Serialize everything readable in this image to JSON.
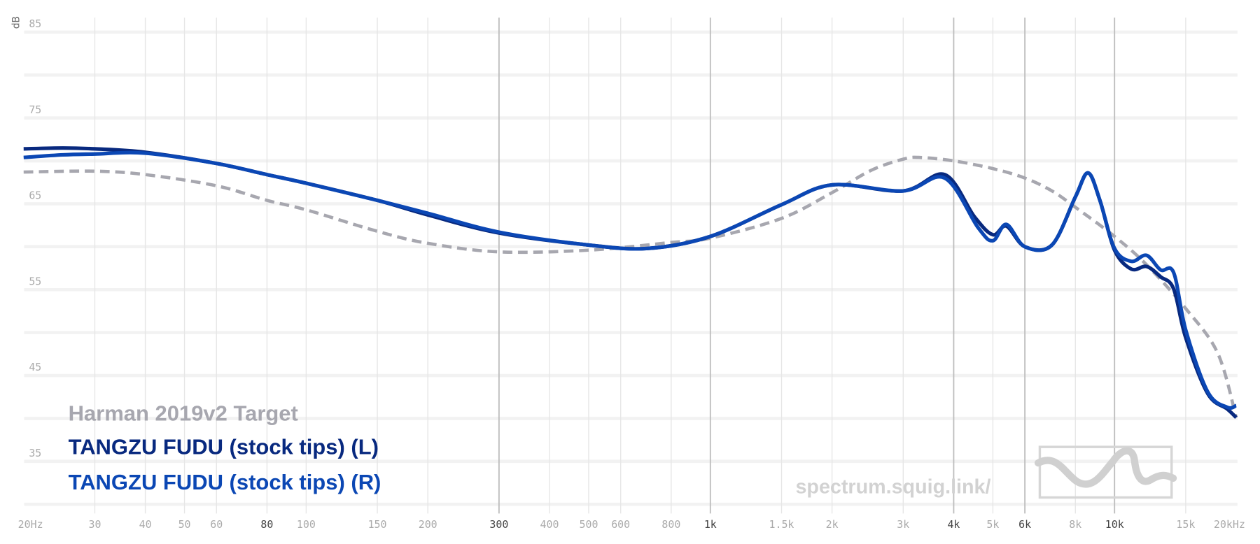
{
  "chart_data": {
    "type": "line",
    "ylabel": "dB",
    "xscale": "log",
    "xlim": [
      20,
      20000
    ],
    "ylim": [
      30,
      85
    ],
    "y_tick_labels": [
      "85",
      "75",
      "65",
      "55",
      "45",
      "35"
    ],
    "y_ticks": [
      85,
      75,
      65,
      55,
      45,
      35
    ],
    "y_grid": [
      85,
      80,
      75,
      70,
      65,
      60,
      55,
      50,
      45,
      40,
      35,
      30
    ],
    "x_ticks": [
      {
        "f": 20,
        "label": "20Hz"
      },
      {
        "f": 30,
        "label": "30"
      },
      {
        "f": 40,
        "label": "40"
      },
      {
        "f": 50,
        "label": "50"
      },
      {
        "f": 60,
        "label": "60"
      },
      {
        "f": 80,
        "label": "80",
        "major": true
      },
      {
        "f": 100,
        "label": "100"
      },
      {
        "f": 150,
        "label": "150"
      },
      {
        "f": 200,
        "label": "200"
      },
      {
        "f": 300,
        "label": "300",
        "major": true
      },
      {
        "f": 400,
        "label": "400"
      },
      {
        "f": 500,
        "label": "500"
      },
      {
        "f": 600,
        "label": "600"
      },
      {
        "f": 800,
        "label": "800"
      },
      {
        "f": 1000,
        "label": "1k",
        "major": true
      },
      {
        "f": 1500,
        "label": "1.5k"
      },
      {
        "f": 2000,
        "label": "2k"
      },
      {
        "f": 3000,
        "label": "3k"
      },
      {
        "f": 4000,
        "label": "4k",
        "major": true
      },
      {
        "f": 5000,
        "label": "5k"
      },
      {
        "f": 6000,
        "label": "6k",
        "major": true
      },
      {
        "f": 8000,
        "label": "8k"
      },
      {
        "f": 10000,
        "label": "10k",
        "major": true
      },
      {
        "f": 15000,
        "label": "15k"
      },
      {
        "f": 20000,
        "label": "20kHz"
      }
    ],
    "grid": true,
    "legend_position": "bottom-left",
    "series": [
      {
        "name": "Harman 2019v2 Target",
        "color": "#a7a7af",
        "dashed": true,
        "x": [
          20,
          30,
          40,
          60,
          80,
          100,
          150,
          200,
          300,
          500,
          800,
          1000,
          1500,
          2000,
          2500,
          3000,
          3300,
          4000,
          5000,
          6000,
          7000,
          8000,
          10000,
          12000,
          15000,
          18000,
          20000
        ],
        "y": [
          68.7,
          68.8,
          68.4,
          67.1,
          65.4,
          64.3,
          61.8,
          60.4,
          59.4,
          59.6,
          60.5,
          61.0,
          63.3,
          66.3,
          68.9,
          70.2,
          70.4,
          70.0,
          69.1,
          68.0,
          66.5,
          64.6,
          61.2,
          57.9,
          52.8,
          47.6,
          40.1
        ]
      },
      {
        "name": "TANGZU FUDU (stock tips) (L)",
        "color": "#08297f",
        "dashed": false,
        "x": [
          20,
          25,
          30,
          40,
          60,
          80,
          100,
          150,
          200,
          300,
          500,
          700,
          1000,
          1500,
          2000,
          3000,
          3800,
          4500,
          5000,
          5400,
          6000,
          7000,
          8000,
          8600,
          9200,
          10000,
          11000,
          12000,
          13000,
          14000,
          15000,
          17000,
          19000,
          20000
        ],
        "y": [
          71.4,
          71.5,
          71.4,
          71.0,
          69.7,
          68.4,
          67.4,
          65.4,
          63.7,
          61.6,
          60.2,
          59.8,
          61.2,
          64.9,
          67.2,
          66.5,
          68.4,
          63.5,
          61.4,
          62.4,
          60.0,
          60.2,
          65.8,
          68.6,
          65.4,
          59.6,
          57.4,
          57.7,
          56.5,
          55.1,
          49.4,
          42.9,
          41.1,
          40.1
        ]
      },
      {
        "name": "TANGZU FUDU (stock tips) (R)",
        "color": "#0b47b4",
        "dashed": false,
        "x": [
          20,
          25,
          30,
          40,
          60,
          80,
          100,
          150,
          200,
          300,
          500,
          700,
          1000,
          1500,
          2000,
          3000,
          3800,
          4600,
          5000,
          5400,
          6000,
          7000,
          8000,
          8600,
          9200,
          10000,
          11000,
          12000,
          13000,
          14000,
          15000,
          17000,
          19000,
          20000
        ],
        "y": [
          70.4,
          70.7,
          70.8,
          70.9,
          69.7,
          68.4,
          67.4,
          65.4,
          63.9,
          61.7,
          60.2,
          59.8,
          61.2,
          64.9,
          67.2,
          66.5,
          68.0,
          62.2,
          60.7,
          62.6,
          60.0,
          60.2,
          65.8,
          68.6,
          65.4,
          59.8,
          58.3,
          59.0,
          57.3,
          57.0,
          50.3,
          43.1,
          41.3,
          41.5
        ]
      }
    ]
  },
  "watermark": {
    "text": "spectrum.squig.link/"
  }
}
